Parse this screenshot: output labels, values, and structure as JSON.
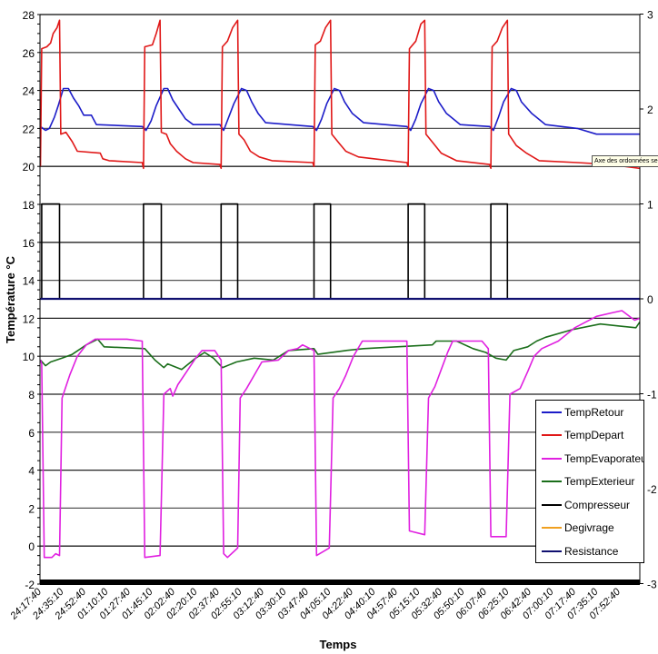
{
  "chart_data": {
    "type": "line",
    "title": "",
    "xlabel": "Temps",
    "ylabel": "Température °C",
    "y2label": "",
    "ylim": [
      -2,
      28
    ],
    "y2lim": [
      -3,
      3
    ],
    "yticks": [
      28,
      26,
      24,
      22,
      20,
      18,
      16,
      14,
      12,
      10,
      8,
      6,
      4,
      2,
      0,
      -2
    ],
    "y2ticks": [
      3,
      2,
      1,
      0,
      -1,
      -2,
      -3
    ],
    "xticks": [
      "24:17:40",
      "24:35:10",
      "24:52:40",
      "01:10:10",
      "01:27:40",
      "01:45:10",
      "02:02:40",
      "02:20:10",
      "02:37:40",
      "02:55:10",
      "03:12:40",
      "03:30:10",
      "03:47:40",
      "04:05:10",
      "04:22:40",
      "04:40:10",
      "04:57:40",
      "05:15:10",
      "05:32:40",
      "05:50:10",
      "06:07:40",
      "06:25:10",
      "06:42:40",
      "07:00:10",
      "07:17:40",
      "07:35:10",
      "07:52:40"
    ],
    "grid": true,
    "legend_position": "bottom-right",
    "tooltip": "Axe des ordonnées secondaire",
    "series": [
      {
        "name": "TempRetour",
        "color": "#1c1cc8",
        "axis": "primary",
        "points": [
          [
            "24:18",
            22.1
          ],
          [
            "24:22",
            21.9
          ],
          [
            "24:25",
            22.0
          ],
          [
            "24:29",
            22.6
          ],
          [
            "24:32",
            23.2
          ],
          [
            "24:36",
            24.1
          ],
          [
            "24:40",
            24.1
          ],
          [
            "24:44",
            23.6
          ],
          [
            "24:48",
            23.2
          ],
          [
            "24:52",
            22.7
          ],
          [
            "24:58",
            22.7
          ],
          [
            "01:02",
            22.2
          ],
          [
            "01:38",
            22.1
          ],
          [
            "01:41",
            21.9
          ],
          [
            "01:45",
            22.4
          ],
          [
            "01:49",
            23.2
          ],
          [
            "01:55",
            24.1
          ],
          [
            "01:58",
            24.1
          ],
          [
            "02:02",
            23.5
          ],
          [
            "02:07",
            23.0
          ],
          [
            "02:12",
            22.5
          ],
          [
            "02:18",
            22.2
          ],
          [
            "02:39",
            22.2
          ],
          [
            "02:42",
            21.9
          ],
          [
            "02:46",
            22.6
          ],
          [
            "02:50",
            23.3
          ],
          [
            "02:56",
            24.1
          ],
          [
            "03:00",
            24.0
          ],
          [
            "03:04",
            23.4
          ],
          [
            "03:09",
            22.8
          ],
          [
            "03:15",
            22.3
          ],
          [
            "03:52",
            22.1
          ],
          [
            "03:55",
            21.9
          ],
          [
            "03:59",
            22.5
          ],
          [
            "04:03",
            23.3
          ],
          [
            "04:09",
            24.1
          ],
          [
            "04:13",
            24.0
          ],
          [
            "04:17",
            23.4
          ],
          [
            "04:23",
            22.8
          ],
          [
            "04:32",
            22.3
          ],
          [
            "05:06",
            22.1
          ],
          [
            "05:09",
            21.9
          ],
          [
            "05:13",
            22.5
          ],
          [
            "05:17",
            23.3
          ],
          [
            "05:23",
            24.1
          ],
          [
            "05:27",
            24.0
          ],
          [
            "05:31",
            23.4
          ],
          [
            "05:37",
            22.8
          ],
          [
            "05:48",
            22.2
          ],
          [
            "06:11",
            22.1
          ],
          [
            "06:14",
            21.9
          ],
          [
            "06:18",
            22.6
          ],
          [
            "06:22",
            23.4
          ],
          [
            "06:28",
            24.1
          ],
          [
            "06:32",
            24.0
          ],
          [
            "06:36",
            23.4
          ],
          [
            "06:44",
            22.8
          ],
          [
            "06:55",
            22.2
          ],
          [
            "07:20",
            22.0
          ],
          [
            "07:35",
            21.7
          ],
          [
            "08:09",
            21.7
          ]
        ]
      },
      {
        "name": "TempDepart",
        "color": "#e01818",
        "axis": "primary",
        "points": [
          [
            "24:18",
            20.0
          ],
          [
            "24:19",
            26.2
          ],
          [
            "24:23",
            26.3
          ],
          [
            "24:26",
            26.5
          ],
          [
            "24:28",
            27.0
          ],
          [
            "24:31",
            27.3
          ],
          [
            "24:33",
            27.7
          ],
          [
            "24:34",
            21.7
          ],
          [
            "24:38",
            21.8
          ],
          [
            "24:43",
            21.3
          ],
          [
            "24:47",
            20.8
          ],
          [
            "01:05",
            20.7
          ],
          [
            "01:07",
            20.4
          ],
          [
            "01:12",
            20.3
          ],
          [
            "01:38",
            20.2
          ],
          [
            "01:39",
            19.9
          ],
          [
            "01:40",
            26.3
          ],
          [
            "01:46",
            26.4
          ],
          [
            "01:49",
            27.0
          ],
          [
            "01:52",
            27.7
          ],
          [
            "01:53",
            21.8
          ],
          [
            "01:57",
            21.7
          ],
          [
            "02:00",
            21.2
          ],
          [
            "02:05",
            20.8
          ],
          [
            "02:12",
            20.4
          ],
          [
            "02:18",
            20.2
          ],
          [
            "02:39",
            20.1
          ],
          [
            "02:40",
            19.9
          ],
          [
            "02:41",
            26.3
          ],
          [
            "02:45",
            26.6
          ],
          [
            "02:49",
            27.3
          ],
          [
            "02:53",
            27.7
          ],
          [
            "02:54",
            21.7
          ],
          [
            "02:58",
            21.4
          ],
          [
            "03:03",
            20.8
          ],
          [
            "03:10",
            20.5
          ],
          [
            "03:20",
            20.3
          ],
          [
            "03:52",
            20.2
          ],
          [
            "03:53",
            20.0
          ],
          [
            "03:54",
            26.4
          ],
          [
            "03:58",
            26.6
          ],
          [
            "04:02",
            27.3
          ],
          [
            "04:06",
            27.7
          ],
          [
            "04:07",
            21.7
          ],
          [
            "04:13",
            21.2
          ],
          [
            "04:18",
            20.8
          ],
          [
            "04:28",
            20.5
          ],
          [
            "04:40",
            20.4
          ],
          [
            "05:06",
            20.2
          ],
          [
            "05:07",
            20.0
          ],
          [
            "05:08",
            26.2
          ],
          [
            "05:13",
            26.6
          ],
          [
            "05:17",
            27.5
          ],
          [
            "05:20",
            27.7
          ],
          [
            "05:21",
            21.7
          ],
          [
            "05:27",
            21.2
          ],
          [
            "05:33",
            20.7
          ],
          [
            "05:45",
            20.3
          ],
          [
            "06:11",
            20.1
          ],
          [
            "06:12",
            19.9
          ],
          [
            "06:13",
            26.3
          ],
          [
            "06:17",
            26.6
          ],
          [
            "06:21",
            27.3
          ],
          [
            "06:25",
            27.7
          ],
          [
            "06:26",
            21.7
          ],
          [
            "06:32",
            21.1
          ],
          [
            "06:40",
            20.7
          ],
          [
            "06:50",
            20.3
          ],
          [
            "07:20",
            20.2
          ],
          [
            "07:45",
            20.1
          ],
          [
            "08:09",
            19.9
          ]
        ]
      },
      {
        "name": "TempEvaporateur",
        "color": "#e020e0",
        "axis": "primary",
        "points": [
          [
            "24:18",
            9.8
          ],
          [
            "24:19",
            9.6
          ],
          [
            "24:21",
            -0.6
          ],
          [
            "24:27",
            -0.6
          ],
          [
            "24:30",
            -0.4
          ],
          [
            "24:33",
            -0.5
          ],
          [
            "24:35",
            7.8
          ],
          [
            "24:38",
            8.4
          ],
          [
            "24:41",
            9.0
          ],
          [
            "24:47",
            10.0
          ],
          [
            "24:54",
            10.6
          ],
          [
            "01:01",
            10.9
          ],
          [
            "01:26",
            10.9
          ],
          [
            "01:38",
            10.8
          ],
          [
            "01:40",
            -0.6
          ],
          [
            "01:52",
            -0.5
          ],
          [
            "01:55",
            8.0
          ],
          [
            "02:00",
            8.3
          ],
          [
            "02:02",
            7.9
          ],
          [
            "02:06",
            8.5
          ],
          [
            "02:13",
            9.2
          ],
          [
            "02:20",
            9.9
          ],
          [
            "02:25",
            10.3
          ],
          [
            "02:35",
            10.3
          ],
          [
            "02:40",
            9.8
          ],
          [
            "02:42",
            -0.4
          ],
          [
            "02:45",
            -0.6
          ],
          [
            "02:53",
            -0.1
          ],
          [
            "02:55",
            7.8
          ],
          [
            "03:00",
            8.3
          ],
          [
            "03:06",
            9.0
          ],
          [
            "03:12",
            9.7
          ],
          [
            "03:25",
            9.8
          ],
          [
            "03:33",
            10.3
          ],
          [
            "03:40",
            10.4
          ],
          [
            "03:44",
            10.6
          ],
          [
            "03:50",
            10.4
          ],
          [
            "03:53",
            10.3
          ],
          [
            "03:55",
            -0.5
          ],
          [
            "04:05",
            -0.1
          ],
          [
            "04:08",
            7.8
          ],
          [
            "04:13",
            8.3
          ],
          [
            "04:18",
            9.0
          ],
          [
            "04:24",
            10.0
          ],
          [
            "04:31",
            10.8
          ],
          [
            "05:06",
            10.8
          ],
          [
            "05:08",
            0.8
          ],
          [
            "05:20",
            0.6
          ],
          [
            "05:23",
            7.8
          ],
          [
            "05:28",
            8.4
          ],
          [
            "05:33",
            9.3
          ],
          [
            "05:38",
            10.2
          ],
          [
            "05:42",
            10.8
          ],
          [
            "06:05",
            10.8
          ],
          [
            "06:10",
            10.4
          ],
          [
            "06:12",
            0.5
          ],
          [
            "06:24",
            0.5
          ],
          [
            "06:27",
            8.0
          ],
          [
            "06:35",
            8.3
          ],
          [
            "06:41",
            9.2
          ],
          [
            "06:46",
            10.0
          ],
          [
            "06:52",
            10.4
          ],
          [
            "07:05",
            10.8
          ],
          [
            "07:18",
            11.5
          ],
          [
            "07:35",
            12.1
          ],
          [
            "07:48",
            12.3
          ],
          [
            "07:55",
            12.4
          ],
          [
            "08:05",
            11.9
          ],
          [
            "08:09",
            12.0
          ]
        ]
      },
      {
        "name": "TempExterieur",
        "color": "#1a6e1a",
        "axis": "primary",
        "points": [
          [
            "24:18",
            9.8
          ],
          [
            "24:22",
            9.5
          ],
          [
            "24:26",
            9.7
          ],
          [
            "24:35",
            9.9
          ],
          [
            "24:43",
            10.1
          ],
          [
            "24:54",
            10.6
          ],
          [
            "01:03",
            10.9
          ],
          [
            "01:08",
            10.5
          ],
          [
            "01:40",
            10.4
          ],
          [
            "01:48",
            9.8
          ],
          [
            "01:55",
            9.4
          ],
          [
            "01:58",
            9.6
          ],
          [
            "02:09",
            9.3
          ],
          [
            "02:20",
            9.9
          ],
          [
            "02:27",
            10.2
          ],
          [
            "02:34",
            9.9
          ],
          [
            "02:41",
            9.4
          ],
          [
            "02:52",
            9.7
          ],
          [
            "03:06",
            9.9
          ],
          [
            "03:21",
            9.8
          ],
          [
            "03:33",
            10.3
          ],
          [
            "03:53",
            10.4
          ],
          [
            "03:56",
            10.1
          ],
          [
            "04:18",
            10.3
          ],
          [
            "04:32",
            10.4
          ],
          [
            "05:26",
            10.6
          ],
          [
            "05:29",
            10.8
          ],
          [
            "05:45",
            10.8
          ],
          [
            "05:58",
            10.4
          ],
          [
            "06:08",
            10.2
          ],
          [
            "06:16",
            9.9
          ],
          [
            "06:24",
            9.8
          ],
          [
            "06:30",
            10.3
          ],
          [
            "06:41",
            10.5
          ],
          [
            "06:48",
            10.8
          ],
          [
            "06:55",
            11.0
          ],
          [
            "07:16",
            11.4
          ],
          [
            "07:38",
            11.7
          ],
          [
            "07:52",
            11.6
          ],
          [
            "08:06",
            11.5
          ],
          [
            "08:09",
            11.8
          ]
        ]
      },
      {
        "name": "Compresseur",
        "color": "#000000",
        "axis": "secondary",
        "points": [
          [
            "24:18",
            0
          ],
          [
            "24:19",
            0
          ],
          [
            "24:19",
            1
          ],
          [
            "24:33",
            1
          ],
          [
            "24:33",
            0
          ],
          [
            "01:39",
            0
          ],
          [
            "01:39",
            1
          ],
          [
            "01:53",
            1
          ],
          [
            "01:53",
            0
          ],
          [
            "02:40",
            0
          ],
          [
            "02:40",
            1
          ],
          [
            "02:53",
            1
          ],
          [
            "02:53",
            0
          ],
          [
            "03:53",
            0
          ],
          [
            "03:53",
            1
          ],
          [
            "04:06",
            1
          ],
          [
            "04:06",
            0
          ],
          [
            "05:07",
            0
          ],
          [
            "05:07",
            1
          ],
          [
            "05:20",
            1
          ],
          [
            "05:20",
            0
          ],
          [
            "06:12",
            0
          ],
          [
            "06:12",
            1
          ],
          [
            "06:25",
            1
          ],
          [
            "06:25",
            0
          ],
          [
            "08:09",
            0
          ]
        ]
      },
      {
        "name": "Degivrage",
        "color": "#f0a020",
        "axis": "secondary",
        "points": [
          [
            "24:18",
            0
          ],
          [
            "08:09",
            0
          ]
        ]
      },
      {
        "name": "Resistance",
        "color": "#101070",
        "axis": "secondary",
        "points": [
          [
            "24:18",
            0
          ],
          [
            "08:09",
            0
          ]
        ]
      }
    ]
  }
}
